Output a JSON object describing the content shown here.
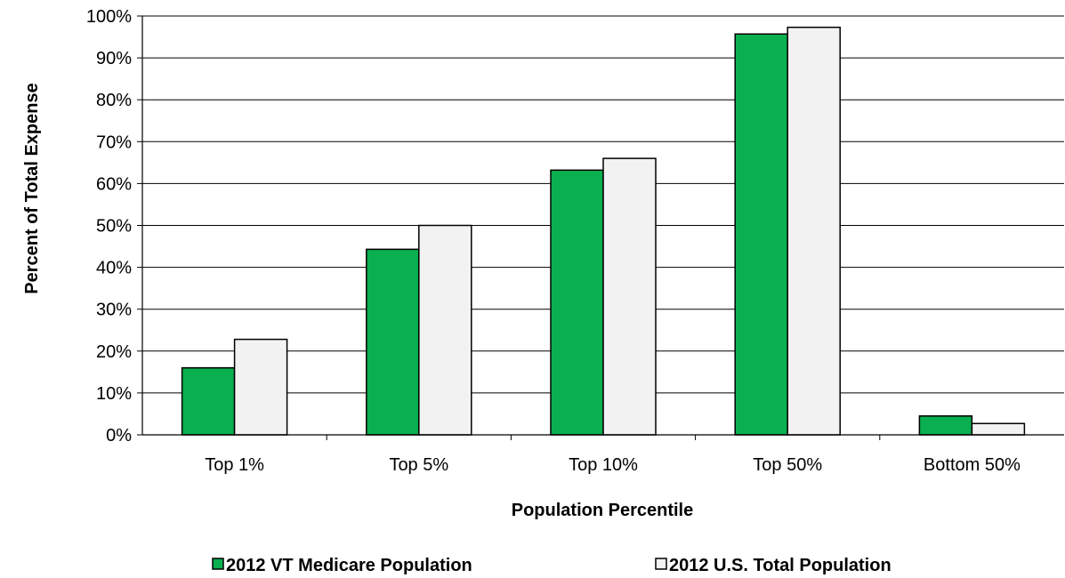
{
  "chart_data": {
    "type": "bar",
    "title": "",
    "xlabel": "Population Percentile",
    "ylabel": "Percent of Total Expense",
    "categories": [
      "Top 1%",
      "Top 5%",
      "Top 10%",
      "Top 50%",
      "Bottom 50%"
    ],
    "series": [
      {
        "name": "2012 VT Medicare Population",
        "values": [
          16,
          44.3,
          63.2,
          95.7,
          4.5
        ],
        "color": "#0aaf50"
      },
      {
        "name": "2012 U.S. Total Population",
        "values": [
          22.8,
          50,
          66,
          97.3,
          2.7
        ],
        "color": "#f2f2f2"
      }
    ],
    "ylim": [
      0,
      100
    ],
    "yticks": [
      0,
      10,
      20,
      30,
      40,
      50,
      60,
      70,
      80,
      90,
      100
    ],
    "ytick_labels": [
      "0%",
      "10%",
      "20%",
      "30%",
      "40%",
      "50%",
      "60%",
      "70%",
      "80%",
      "90%",
      "100%"
    ],
    "grid": true,
    "legend_position": "bottom"
  }
}
